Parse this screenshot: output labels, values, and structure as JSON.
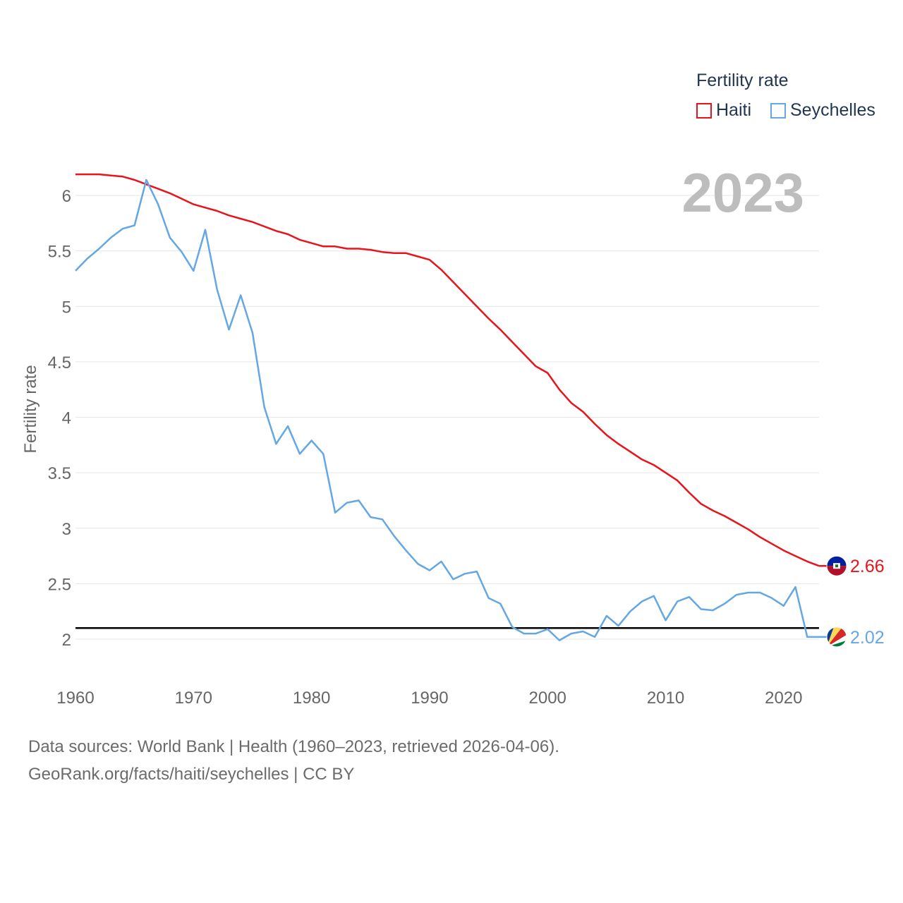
{
  "legend": {
    "title": "Fertility rate",
    "items": [
      {
        "label": "Haiti",
        "color": "#e8141b"
      },
      {
        "label": "Seychelles",
        "color": "#64a7e3"
      }
    ]
  },
  "year_label": "2023",
  "source": {
    "line1": "Data sources: World Bank | Health (1960–2023, retrieved 2026-04-06).",
    "line2": "GeoRank.org/facts/haiti/seychelles | CC BY"
  },
  "chart_data": {
    "type": "line",
    "ylabel": "Fertility rate",
    "xlabel": "",
    "xlim": [
      1960,
      2023
    ],
    "ylim": [
      1.85,
      6.3
    ],
    "x_ticks": [
      1960,
      1970,
      1980,
      1990,
      2000,
      2010,
      2020
    ],
    "y_ticks": [
      2,
      2.5,
      3,
      3.5,
      4,
      4.5,
      5,
      5.5,
      6
    ],
    "y_tick_labels": [
      "2",
      "2.5",
      "3",
      "3.5",
      "4",
      "4.5",
      "5",
      "5.5",
      "6"
    ],
    "reference_line": {
      "y": 2.1,
      "color": "#000000"
    },
    "series": [
      {
        "name": "Haiti",
        "color": "#e8141b",
        "end_label": "2.66",
        "x_start": 1960,
        "values": [
          6.19,
          6.19,
          6.19,
          6.18,
          6.17,
          6.14,
          6.1,
          6.06,
          6.02,
          5.97,
          5.92,
          5.89,
          5.86,
          5.82,
          5.79,
          5.76,
          5.72,
          5.68,
          5.65,
          5.6,
          5.57,
          5.54,
          5.54,
          5.52,
          5.52,
          5.51,
          5.49,
          5.48,
          5.48,
          5.45,
          5.42,
          5.33,
          5.22,
          5.11,
          5.0,
          4.89,
          4.79,
          4.68,
          4.57,
          4.46,
          4.4,
          4.25,
          4.13,
          4.05,
          3.94,
          3.84,
          3.76,
          3.69,
          3.62,
          3.57,
          3.5,
          3.43,
          3.32,
          3.22,
          3.16,
          3.11,
          3.05,
          2.99,
          2.92,
          2.86,
          2.8,
          2.75,
          2.7,
          2.66
        ]
      },
      {
        "name": "Seychelles",
        "color": "#64a7e3",
        "end_label": "2.02",
        "x_start": 1960,
        "values": [
          5.32,
          5.43,
          5.52,
          5.62,
          5.7,
          5.73,
          6.14,
          5.92,
          5.62,
          5.49,
          5.32,
          5.69,
          5.15,
          4.79,
          5.1,
          4.76,
          4.09,
          3.76,
          3.92,
          3.67,
          3.79,
          3.67,
          3.14,
          3.23,
          3.25,
          3.1,
          3.08,
          2.93,
          2.8,
          2.68,
          2.62,
          2.7,
          2.54,
          2.59,
          2.61,
          2.37,
          2.32,
          2.11,
          2.05,
          2.05,
          2.09,
          1.99,
          2.05,
          2.07,
          2.02,
          2.21,
          2.12,
          2.25,
          2.34,
          2.39,
          2.17,
          2.34,
          2.38,
          2.27,
          2.26,
          2.32,
          2.4,
          2.42,
          2.42,
          2.37,
          2.3,
          2.47,
          2.02,
          2.02
        ]
      }
    ]
  }
}
